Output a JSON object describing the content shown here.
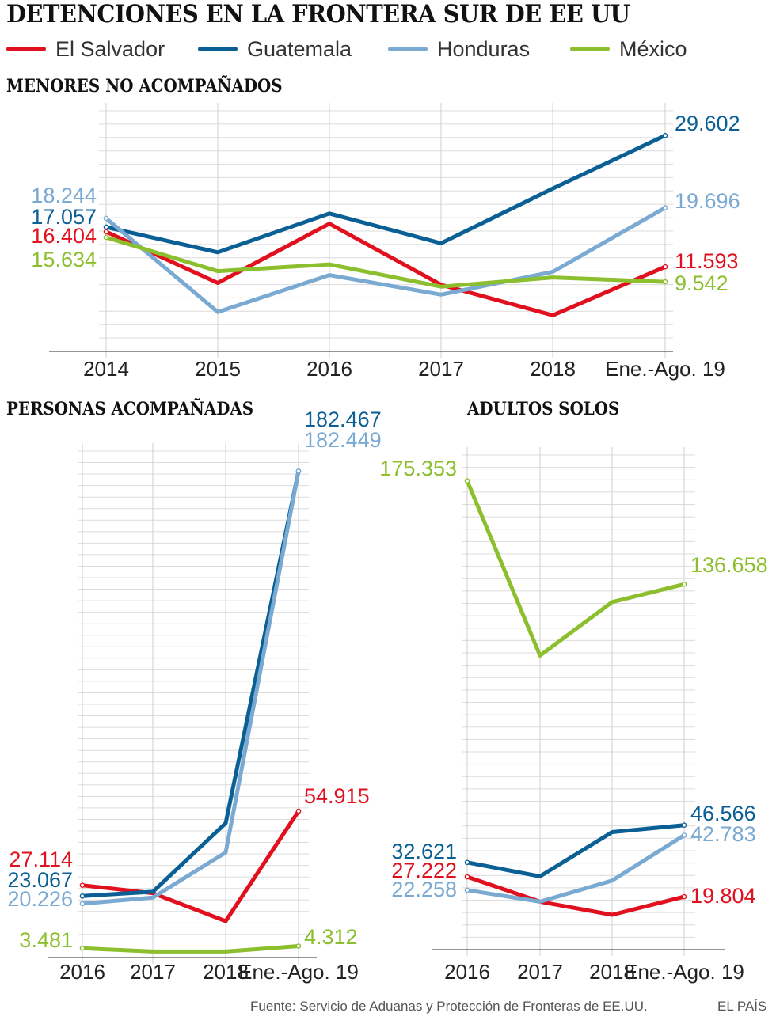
{
  "title": "DETENCIONES EN LA FRONTERA SUR DE EE UU",
  "legend": [
    {
      "name": "El Salvador",
      "color": "#e0101e"
    },
    {
      "name": "Guatemala",
      "color": "#0a5f94"
    },
    {
      "name": "Honduras",
      "color": "#7aa9d2"
    },
    {
      "name": "México",
      "color": "#8cbf2e"
    }
  ],
  "source": "Fuente: Servicio de Aduanas y Protección de Fronteras de EE.UU.",
  "brand": "EL PAÍS",
  "chart_data": [
    {
      "type": "line",
      "title": "MENORES NO ACOMPAÑADOS",
      "categories": [
        "2014",
        "2015",
        "2016",
        "2017",
        "2018",
        "Ene.-Ago. 19"
      ],
      "ylim": [
        0,
        33000
      ],
      "series": [
        {
          "name": "El Salvador",
          "color": "#e0101e",
          "values": [
            16404,
            9389,
            17512,
            9143,
            4949,
            11593
          ],
          "labels": [
            "16.404",
            "",
            "",
            "",
            "",
            "11.593"
          ]
        },
        {
          "name": "Guatemala",
          "color": "#0a5f94",
          "values": [
            17057,
            13589,
            18913,
            14827,
            22327,
            29602
          ],
          "labels": [
            "17.057",
            "",
            "",
            "",
            "",
            "29.602"
          ]
        },
        {
          "name": "Honduras",
          "color": "#7aa9d2",
          "values": [
            18244,
            5409,
            10468,
            7784,
            10913,
            19696
          ],
          "labels": [
            "18.244",
            "",
            "",
            "",
            "",
            "19.696"
          ]
        },
        {
          "name": "México",
          "color": "#8cbf2e",
          "values": [
            15634,
            11012,
            11926,
            8877,
            10136,
            9542
          ],
          "labels": [
            "15.634",
            "",
            "",
            "",
            "",
            "9.542"
          ]
        }
      ]
    },
    {
      "type": "line",
      "title": "PERSONAS ACOMPAÑADAS",
      "categories": [
        "2016",
        "2017",
        "2018",
        "Ene.-Ago. 19"
      ],
      "ylim": [
        0,
        190000
      ],
      "series": [
        {
          "name": "El Salvador",
          "color": "#e0101e",
          "values": [
            27114,
            24122,
            13669,
            54915
          ],
          "labels": [
            "27.114",
            "",
            "",
            "54.915"
          ]
        },
        {
          "name": "Guatemala",
          "color": "#0a5f94",
          "values": [
            23067,
            24657,
            50401,
            182467
          ],
          "labels": [
            "23.067",
            "",
            "",
            "182.467"
          ]
        },
        {
          "name": "Honduras",
          "color": "#7aa9d2",
          "values": [
            20226,
            22491,
            39439,
            182449
          ],
          "labels": [
            "20.226",
            "",
            "",
            "182.449"
          ]
        },
        {
          "name": "México",
          "color": "#8cbf2e",
          "values": [
            3481,
            2261,
            2261,
            4312
          ],
          "labels": [
            "3.481",
            "",
            "",
            "4.312"
          ]
        }
      ]
    },
    {
      "type": "line",
      "title": "ADULTOS SOLOS",
      "categories": [
        "2016",
        "2017",
        "2018",
        "Ene.-Ago. 19"
      ],
      "ylim": [
        0,
        185000
      ],
      "series": [
        {
          "name": "El Salvador",
          "color": "#e0101e",
          "values": [
            27222,
            17944,
            13019,
            19804
          ],
          "labels": [
            "27.222",
            "",
            "",
            "19.804"
          ]
        },
        {
          "name": "Guatemala",
          "color": "#0a5f94",
          "values": [
            32621,
            27407,
            43970,
            46566
          ],
          "labels": [
            "32.621",
            "",
            "",
            "46.566"
          ]
        },
        {
          "name": "Honduras",
          "color": "#7aa9d2",
          "values": [
            22258,
            17944,
            25800,
            42783
          ],
          "labels": [
            "22.258",
            "",
            "",
            "42.783"
          ]
        },
        {
          "name": "México",
          "color": "#8cbf2e",
          "values": [
            175353,
            110000,
            130000,
            136658
          ],
          "labels": [
            "175.353",
            "",
            "",
            "136.658"
          ]
        }
      ]
    }
  ]
}
